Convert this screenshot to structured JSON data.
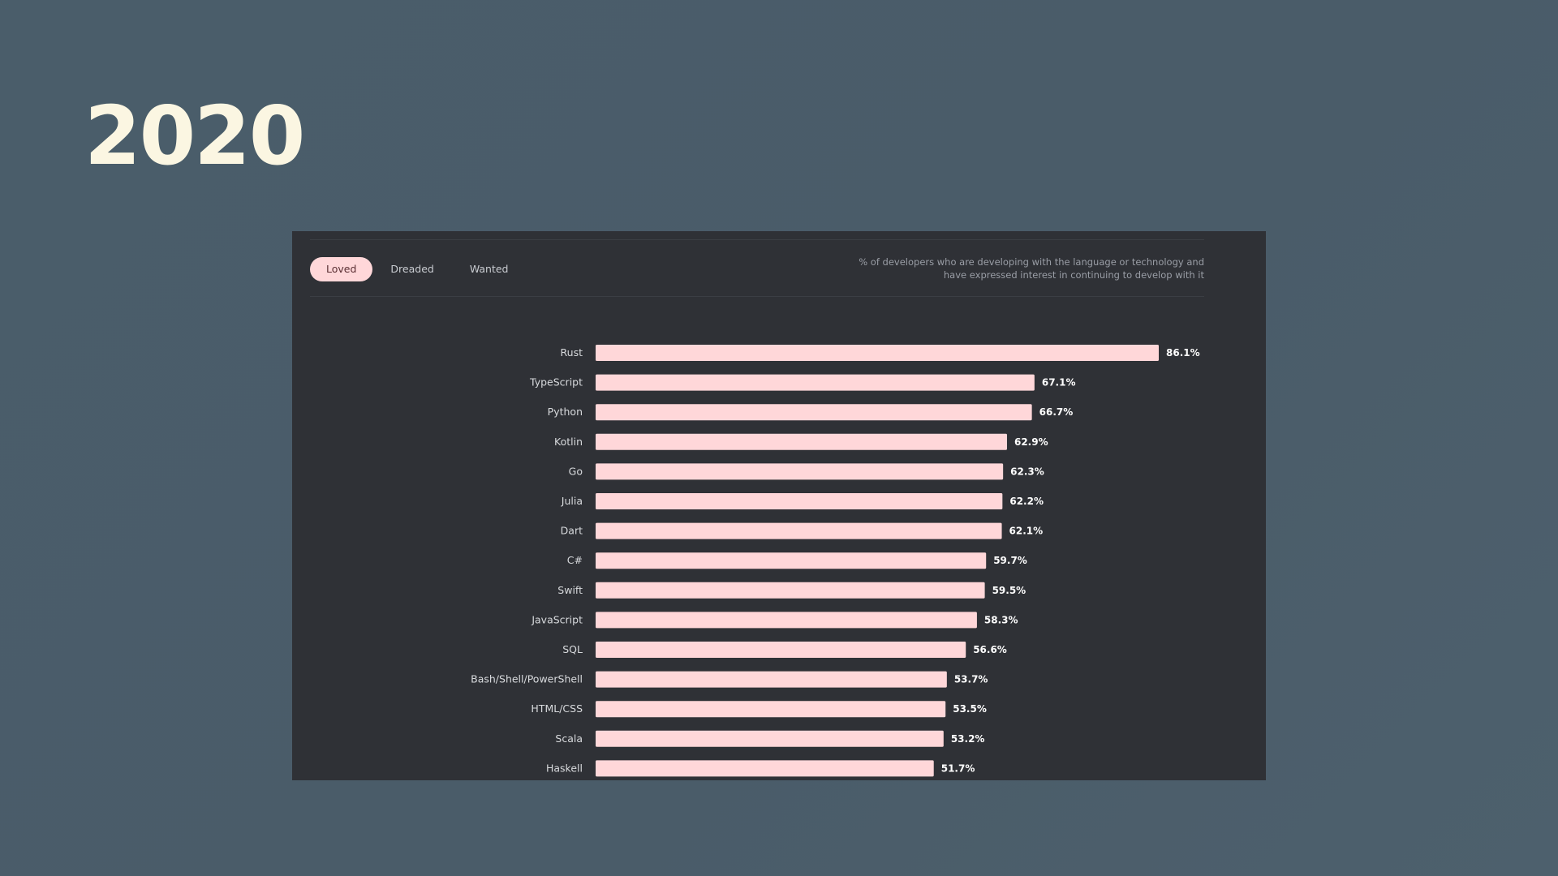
{
  "slide": {
    "title": "2020"
  },
  "tabs": [
    {
      "label": "Loved",
      "active": true
    },
    {
      "label": "Dreaded",
      "active": false
    },
    {
      "label": "Wanted",
      "active": false
    }
  ],
  "description": "% of developers who are developing with the language or technology and have expressed interest in continuing to develop with it",
  "colors": {
    "bar": "#ffd7d9",
    "panel": "#2f3136",
    "background": "#4a5c69",
    "title": "#fbf6e2"
  },
  "chart_data": {
    "type": "bar",
    "orientation": "horizontal",
    "categories": [
      "Rust",
      "TypeScript",
      "Python",
      "Kotlin",
      "Go",
      "Julia",
      "Dart",
      "C#",
      "Swift",
      "JavaScript",
      "SQL",
      "Bash/Shell/PowerShell",
      "HTML/CSS",
      "Scala",
      "Haskell"
    ],
    "values": [
      86.1,
      67.1,
      66.7,
      62.9,
      62.3,
      62.2,
      62.1,
      59.7,
      59.5,
      58.3,
      56.6,
      53.7,
      53.5,
      53.2,
      51.7
    ],
    "value_labels": [
      "86.1%",
      "67.1%",
      "66.7%",
      "62.9%",
      "62.3%",
      "62.2%",
      "62.1%",
      "59.7%",
      "59.5%",
      "58.3%",
      "56.6%",
      "53.7%",
      "53.5%",
      "53.2%",
      "51.7%"
    ],
    "xlim": [
      0,
      86.1
    ],
    "grid": false,
    "legend": "none"
  }
}
